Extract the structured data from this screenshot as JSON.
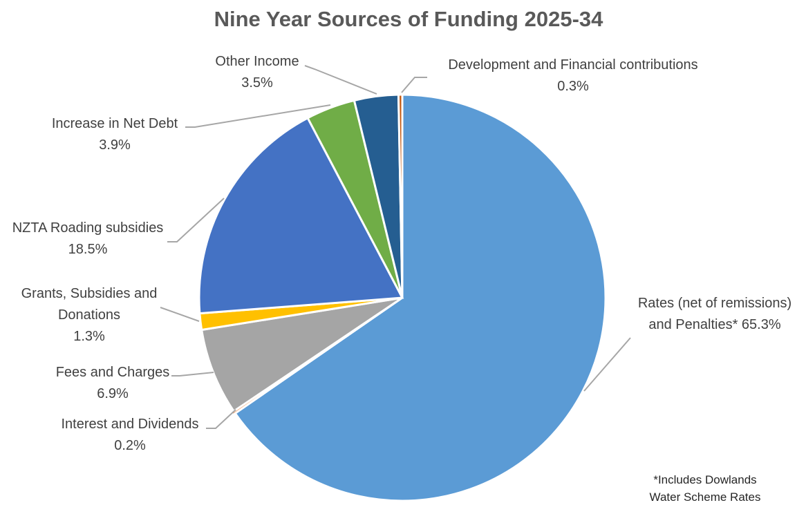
{
  "chart_data": {
    "type": "pie",
    "title": "Nine Year Sources of Funding 2025-34",
    "slices": [
      {
        "label_lines": [
          "Rates (net of remissions)",
          "and Penalties* 65.3%"
        ],
        "value": 65.3,
        "color": "#5b9bd5"
      },
      {
        "label_lines": [
          "Interest and Dividends",
          "0.2%"
        ],
        "value": 0.2,
        "color": "#ed7d31"
      },
      {
        "label_lines": [
          "Fees and Charges",
          "6.9%"
        ],
        "value": 6.9,
        "color": "#a5a5a5"
      },
      {
        "label_lines": [
          "Grants, Subsidies and",
          "Donations",
          "1.3%"
        ],
        "value": 1.3,
        "color": "#ffc000"
      },
      {
        "label_lines": [
          "NZTA Roading subsidies",
          "18.5%"
        ],
        "value": 18.5,
        "color": "#4472c4"
      },
      {
        "label_lines": [
          "Increase in Net Debt",
          "3.9%"
        ],
        "value": 3.9,
        "color": "#70ad47"
      },
      {
        "label_lines": [
          "Other Income",
          "3.5%"
        ],
        "value": 3.5,
        "color": "#255e91"
      },
      {
        "label_lines": [
          "Development and Financial contributions",
          "0.3%"
        ],
        "value": 0.3,
        "color": "#c55a11"
      }
    ],
    "footnote_lines": [
      "*Includes Dowlands",
      "Water Scheme Rates"
    ]
  }
}
